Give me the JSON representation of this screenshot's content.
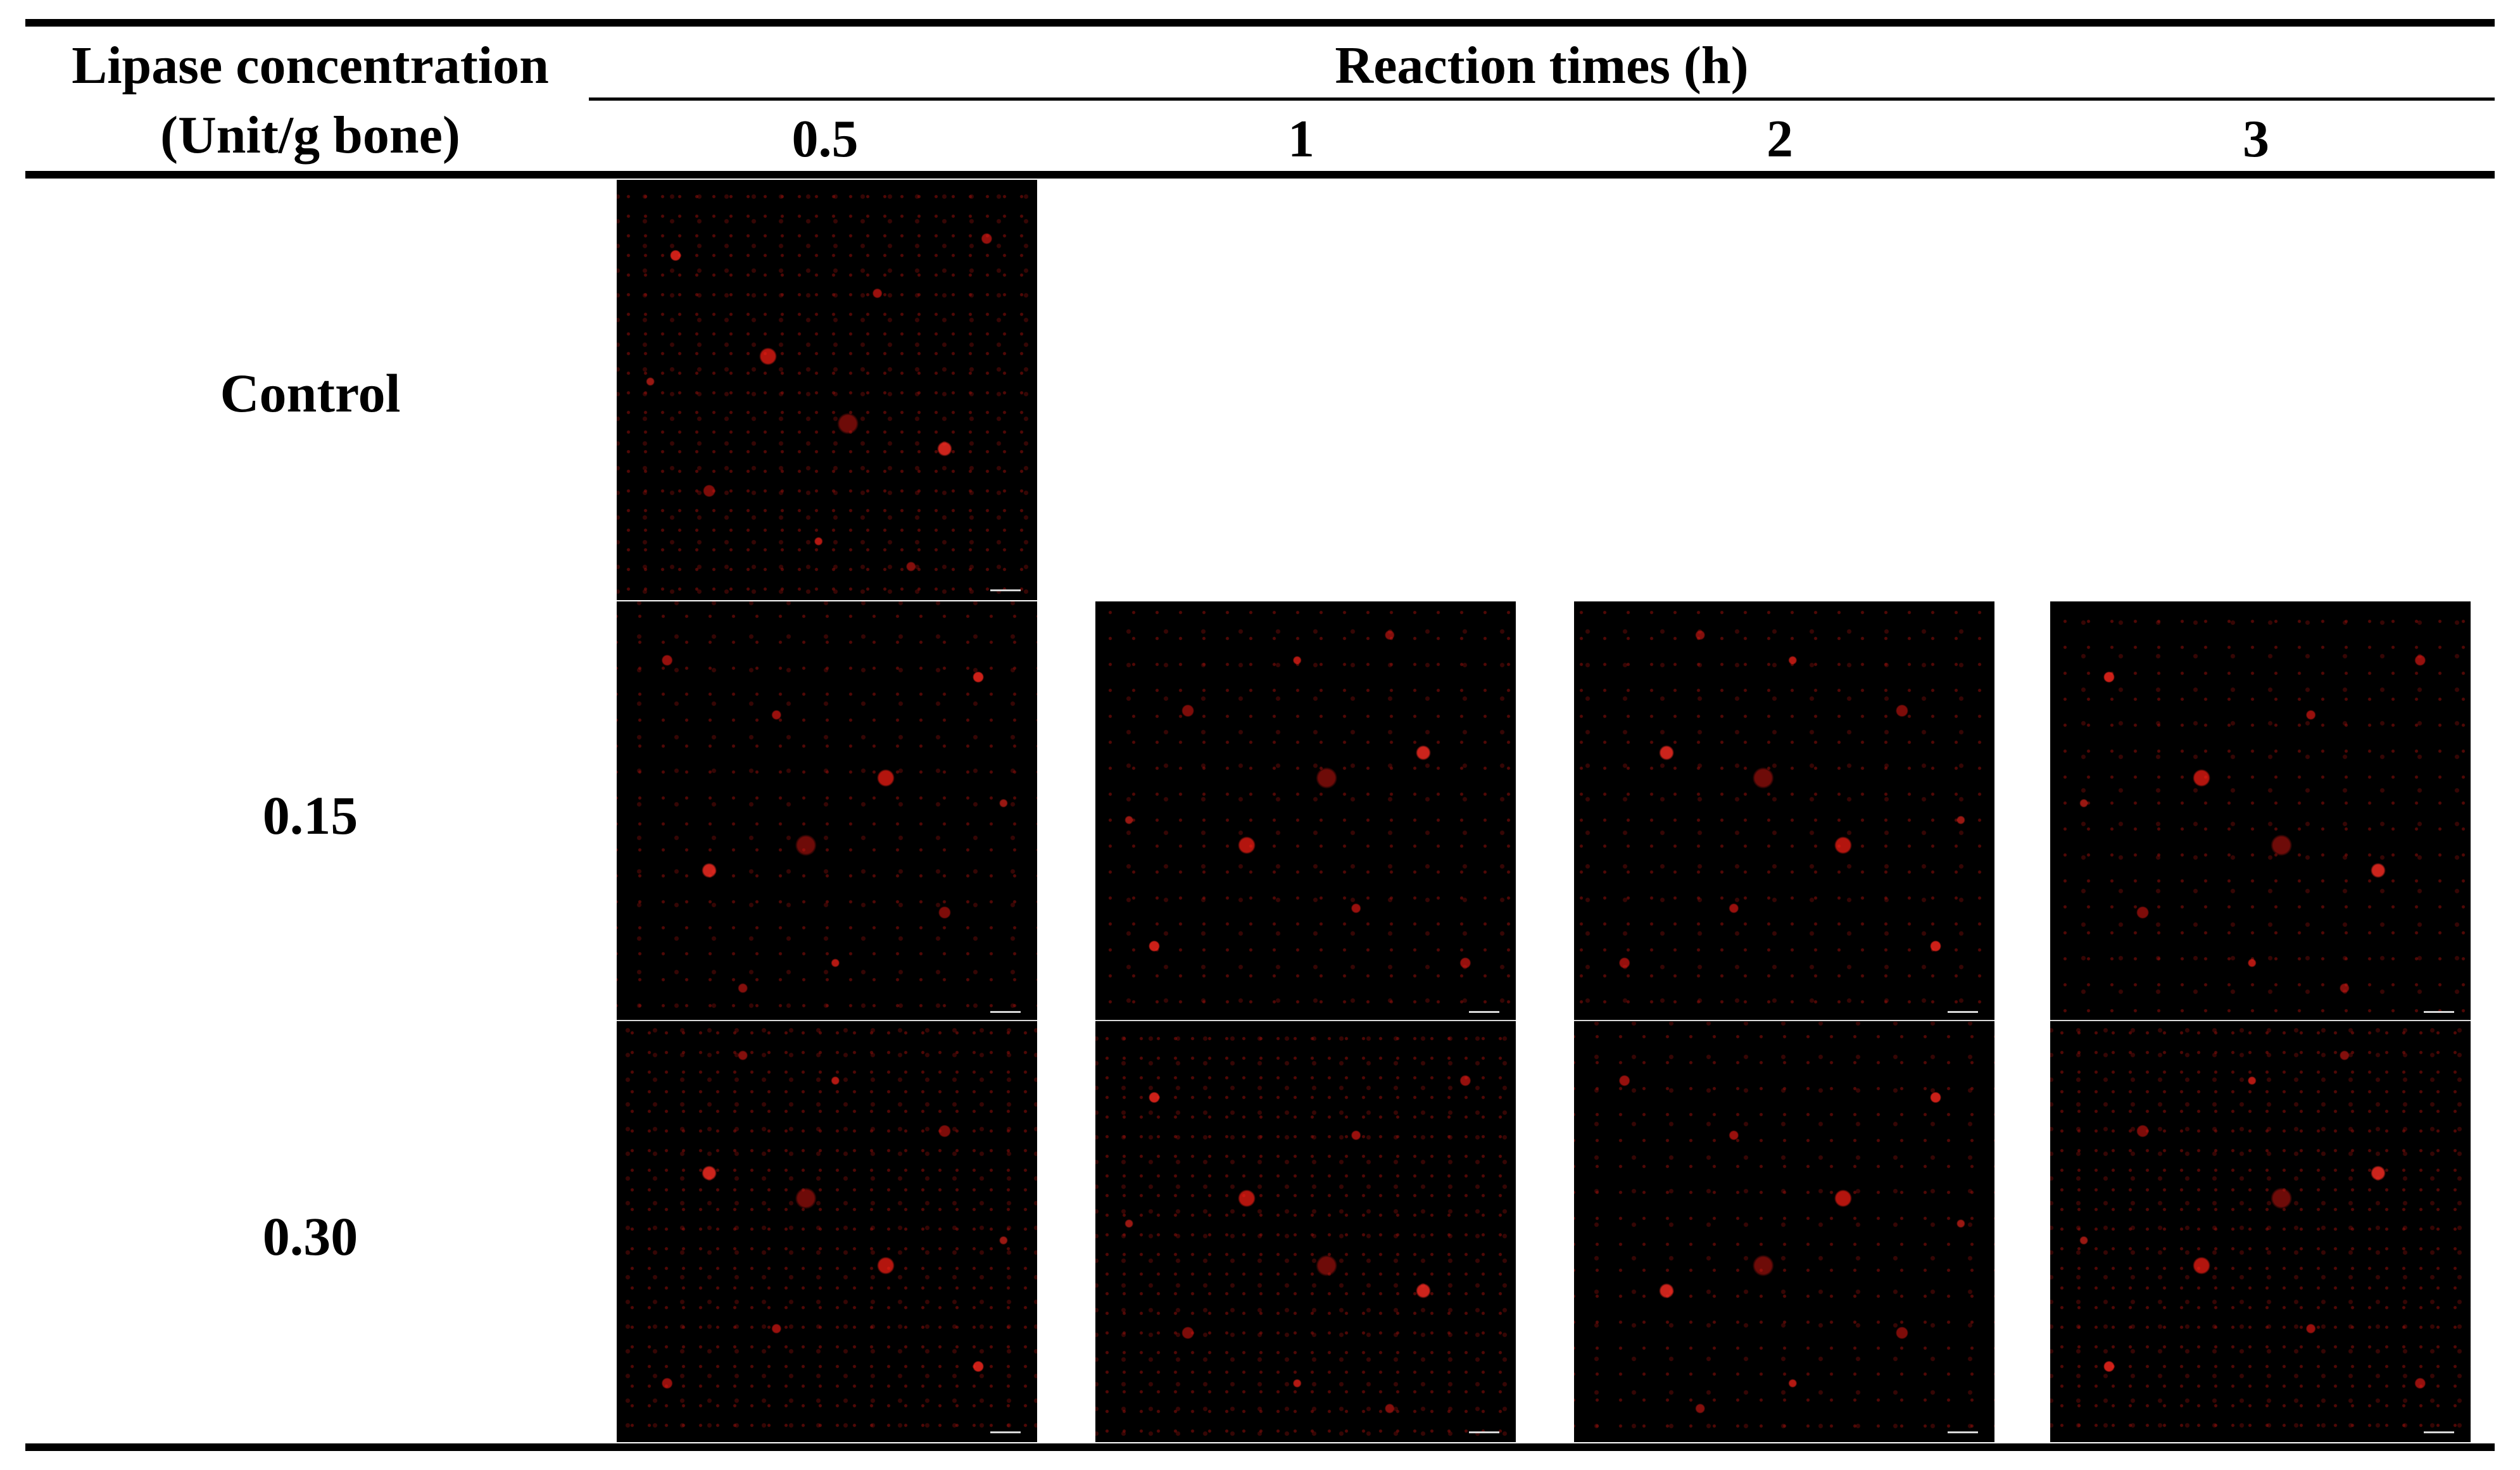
{
  "table": {
    "col1_header_line1": "Lipase concentration",
    "col1_header_line2": "(Unit/g bone)",
    "group_header": "Reaction times (h)",
    "time_headers": [
      "0.5",
      "1",
      "2",
      "3"
    ],
    "row_labels": [
      "Control",
      "0.15",
      "0.30"
    ],
    "micrograph_grid": [
      [
        true,
        false,
        false,
        false
      ],
      [
        true,
        true,
        true,
        true
      ],
      [
        true,
        true,
        true,
        true
      ]
    ],
    "micrograph_colors": {
      "background": "#000000",
      "fluorescence": "#ff2a1e"
    }
  }
}
